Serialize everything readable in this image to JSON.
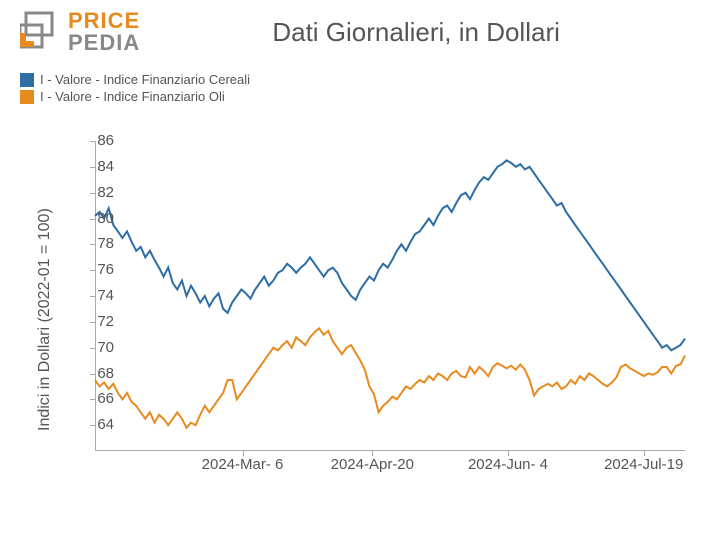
{
  "logo": {
    "price": "PRICE",
    "pedia": "PEDIA",
    "orange": "#e78b1f",
    "gray": "#888888"
  },
  "title": "Dati Giornalieri, in Dollari",
  "legend": {
    "series1": {
      "label": "I - Valore - Indice Finanziario Cereali",
      "color": "#2e6da4"
    },
    "series2": {
      "label": "I - Valore - Indice Finanziario Oli",
      "color": "#e78b1f"
    }
  },
  "chart": {
    "type": "line",
    "ylabel": "Indici in Dollari (2022-01 = 100)",
    "ylim": [
      62,
      86
    ],
    "ytick_step": 2,
    "yticks": [
      64,
      66,
      68,
      70,
      72,
      74,
      76,
      78,
      80,
      82,
      84,
      86
    ],
    "xticks": [
      "2024-Mar- 6",
      "2024-Apr-20",
      "2024-Jun- 4",
      "2024-Jul-19"
    ],
    "xtick_positions": [
      0.25,
      0.47,
      0.7,
      0.93
    ],
    "n_points": 130,
    "series1_color": "#2e6da4",
    "series2_color": "#e78b1f",
    "line_width": 2,
    "background_color": "#ffffff",
    "series1_values": [
      80.2,
      80.5,
      80.0,
      80.8,
      79.5,
      79.0,
      78.5,
      79.0,
      78.2,
      77.5,
      77.8,
      77.0,
      77.5,
      76.8,
      76.2,
      75.5,
      76.2,
      75.0,
      74.5,
      75.2,
      74.0,
      74.8,
      74.2,
      73.5,
      74.0,
      73.2,
      73.8,
      74.2,
      73.0,
      72.7,
      73.5,
      74.0,
      74.5,
      74.2,
      73.8,
      74.5,
      75.0,
      75.5,
      74.8,
      75.2,
      75.8,
      76.0,
      76.5,
      76.2,
      75.8,
      76.2,
      76.5,
      77.0,
      76.5,
      76.0,
      75.5,
      76.0,
      76.2,
      75.8,
      75.0,
      74.5,
      74.0,
      73.7,
      74.5,
      75.0,
      75.5,
      75.2,
      76.0,
      76.5,
      76.2,
      76.8,
      77.5,
      78.0,
      77.5,
      78.2,
      78.8,
      79.0,
      79.5,
      80.0,
      79.5,
      80.2,
      80.8,
      81.0,
      80.5,
      81.2,
      81.8,
      82.0,
      81.5,
      82.2,
      82.8,
      83.2,
      83.0,
      83.5,
      84.0,
      84.2,
      84.5,
      84.3,
      84.0,
      84.2,
      83.8,
      84.0,
      83.5,
      83.0,
      82.5,
      82.0,
      81.5,
      81.0,
      81.2,
      80.5,
      80.0,
      79.5,
      79.0,
      78.5,
      78.0,
      77.5,
      77.0,
      76.5,
      76.0,
      75.5,
      75.0,
      74.5,
      74.0,
      73.5,
      73.0,
      72.5,
      72.0,
      71.5,
      71.0,
      70.5,
      70.0,
      70.2,
      69.8,
      70.0,
      70.2,
      70.7
    ],
    "series2_values": [
      67.5,
      67.0,
      67.3,
      66.8,
      67.2,
      66.5,
      66.0,
      66.5,
      65.8,
      65.5,
      65.0,
      64.5,
      65.0,
      64.2,
      64.8,
      64.5,
      64.0,
      64.5,
      65.0,
      64.5,
      63.8,
      64.2,
      64.0,
      64.8,
      65.5,
      65.0,
      65.5,
      66.0,
      66.5,
      67.5,
      67.5,
      66.0,
      66.5,
      67.0,
      67.5,
      68.0,
      68.5,
      69.0,
      69.5,
      70.0,
      69.8,
      70.2,
      70.5,
      70.0,
      70.8,
      70.5,
      70.2,
      70.8,
      71.2,
      71.5,
      71.0,
      71.3,
      70.5,
      70.0,
      69.5,
      70.0,
      70.2,
      69.6,
      69.0,
      68.3,
      67.0,
      66.4,
      65.0,
      65.5,
      65.8,
      66.2,
      66.0,
      66.5,
      67.0,
      66.8,
      67.2,
      67.5,
      67.3,
      67.8,
      67.5,
      68.0,
      67.8,
      67.5,
      68.0,
      68.2,
      67.8,
      67.7,
      68.5,
      68.0,
      68.5,
      68.2,
      67.8,
      68.5,
      68.8,
      68.6,
      68.4,
      68.6,
      68.3,
      68.7,
      68.3,
      67.5,
      66.3,
      66.8,
      67.0,
      67.2,
      67.0,
      67.3,
      66.8,
      67.0,
      67.5,
      67.2,
      67.8,
      67.5,
      68.0,
      67.8,
      67.5,
      67.2,
      67.0,
      67.3,
      67.7,
      68.5,
      68.7,
      68.4,
      68.2,
      68.0,
      67.8,
      68.0,
      67.9,
      68.1,
      68.5,
      68.5,
      68.0,
      68.6,
      68.7,
      69.4
    ]
  }
}
